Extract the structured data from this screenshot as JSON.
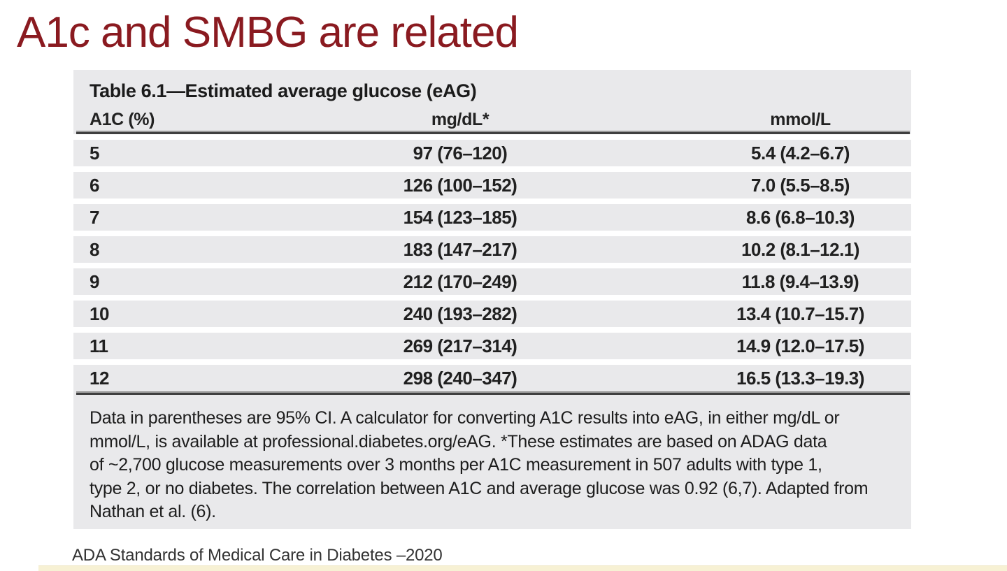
{
  "slide": {
    "title": "A1c and SMBG are related",
    "title_color": "#8a1a20"
  },
  "table": {
    "caption": "Table 6.1—Estimated average glucose (eAG)",
    "columns": [
      "A1C (%)",
      "mg/dL*",
      "mmol/L"
    ],
    "rows": [
      {
        "a1c": "5",
        "mg_dl": "97 (76–120)",
        "mmol_l": "5.4 (4.2–6.7)"
      },
      {
        "a1c": "6",
        "mg_dl": "126 (100–152)",
        "mmol_l": "7.0 (5.5–8.5)"
      },
      {
        "a1c": "7",
        "mg_dl": "154 (123–185)",
        "mmol_l": "8.6 (6.8–10.3)"
      },
      {
        "a1c": "8",
        "mg_dl": "183 (147–217)",
        "mmol_l": "10.2 (8.1–12.1)"
      },
      {
        "a1c": "9",
        "mg_dl": "212 (170–249)",
        "mmol_l": "11.8 (9.4–13.9)"
      },
      {
        "a1c": "10",
        "mg_dl": "240 (193–282)",
        "mmol_l": "13.4 (10.7–15.7)"
      },
      {
        "a1c": "11",
        "mg_dl": "269 (217–314)",
        "mmol_l": "14.9 (12.0–17.5)"
      },
      {
        "a1c": "12",
        "mg_dl": "298 (240–347)",
        "mmol_l": "16.5 (13.3–19.3)"
      }
    ],
    "footnote_lines": [
      "Data in parentheses are 95% CI. A calculator for converting A1C results into eAG, in either mg/dL or",
      "mmol/L, is available at professional.diabetes.org/eAG. *These estimates are based on ADAG data",
      "of ~2,700 glucose measurements over 3 months per A1C measurement in 507 adults with type 1,",
      "type 2, or no diabetes. The correlation between A1C and average glucose was 0.92 (6,7). Adapted from",
      "Nathan et al. (6)."
    ],
    "background_color": "#e9e9eb",
    "rule_color": "#3f3f3f"
  },
  "footer": {
    "citation": "ADA Standards of Medical Care in Diabetes –2020",
    "accent_color": "#f7f1d4"
  }
}
